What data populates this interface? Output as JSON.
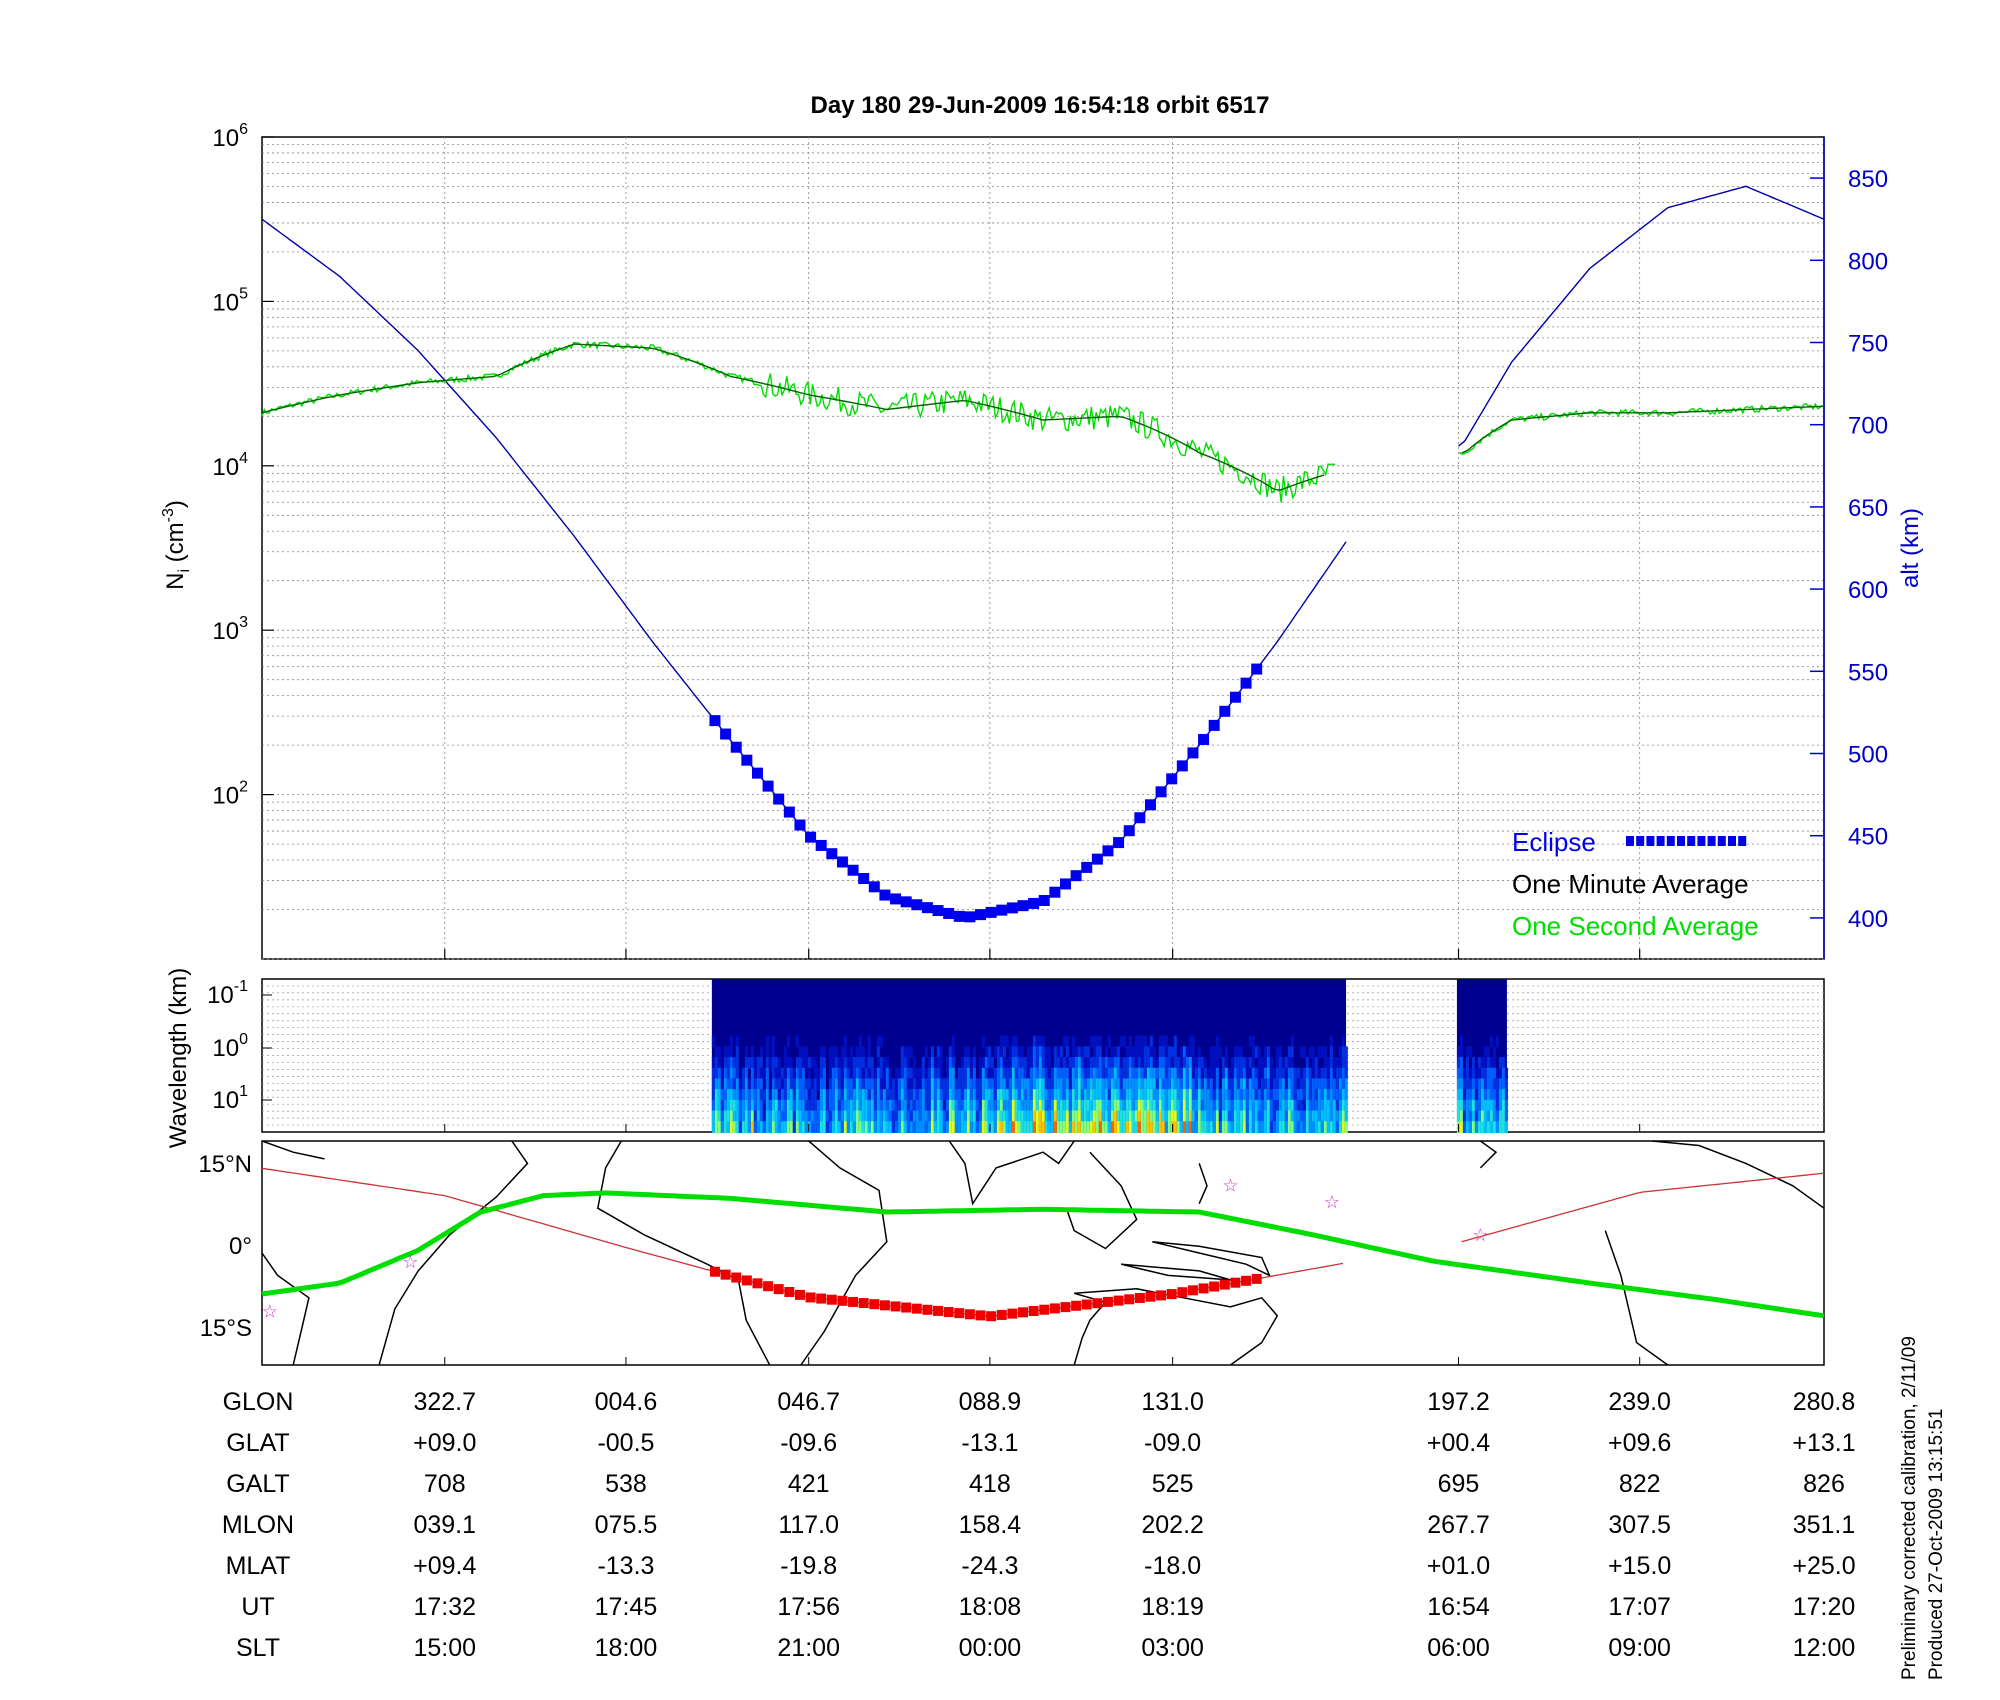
{
  "title": "Day 180  29-Jun-2009 16:54:18   orbit 6517",
  "footer": {
    "line1": "Preliminary corrected calibration, 2/11/09",
    "line2": "Produced 27-Oct-2009 13:15:51"
  },
  "chart_data": [
    {
      "type": "line",
      "panel": "density",
      "ylabel": "Ni (cm-3)",
      "y2label": "alt (km)",
      "yscale": "log",
      "ylim": [
        10,
        1000000
      ],
      "y_ticks": [
        "10^2",
        "10^3",
        "10^4",
        "10^5",
        "10^6"
      ],
      "y2lim": [
        375,
        875
      ],
      "y2_ticks": [
        400,
        450,
        500,
        550,
        600,
        650,
        700,
        750,
        800,
        850
      ],
      "x_range_fraction": [
        0,
        1
      ],
      "grid": true,
      "legend": {
        "position": "bottom-right",
        "entries": [
          "Eclipse",
          "One Minute Average",
          "One Second Average"
        ]
      },
      "series": [
        {
          "name": "Eclipse",
          "color": "#0000ff",
          "note": "altitude where satellite in eclipse",
          "x_frac": [
            0.29,
            0.64
          ]
        },
        {
          "name": "One Minute Average",
          "color": "#000000"
        },
        {
          "name": "One Second Average",
          "color": "#00dd00"
        },
        {
          "color": "#0000aa",
          "x_frac": [
            0.0,
            0.05,
            0.1,
            0.15,
            0.2,
            0.25,
            0.3,
            0.35,
            0.4,
            0.45,
            0.5,
            0.55,
            0.6,
            0.65,
            0.7,
            0.77,
            0.8,
            0.85,
            0.9,
            0.95,
            1.0
          ],
          "alt_km": [
            825,
            790,
            745,
            692,
            632,
            568,
            508,
            450,
            413,
            400,
            410,
            447,
            505,
            568,
            637,
            690,
            738,
            795,
            832,
            845,
            825
          ]
        },
        {
          "color": "#006400",
          "x_frac": [
            0.0,
            0.05,
            0.1,
            0.15,
            0.2,
            0.25,
            0.3,
            0.35,
            0.4,
            0.45,
            0.5,
            0.55,
            0.6,
            0.65,
            0.7,
            0.77,
            0.8,
            0.85,
            0.9,
            0.95,
            1.0
          ],
          "ni": [
            21000,
            27000,
            32000,
            35000,
            55000,
            52000,
            35000,
            27000,
            22000,
            25000,
            19000,
            20000,
            12000,
            7000,
            10000,
            12000,
            19000,
            21000,
            21000,
            22000,
            23000
          ]
        }
      ]
    },
    {
      "type": "heatmap",
      "panel": "spectrogram",
      "ylabel": "Wavelength (km)",
      "y_ticks": [
        "10^-1",
        "10^0",
        "10^1"
      ],
      "data_blocks_x_frac": [
        [
          0.288,
          0.694
        ],
        [
          0.765,
          0.797
        ]
      ]
    },
    {
      "type": "line",
      "panel": "map",
      "y_ticks": [
        "15°N",
        "0°",
        "15°S"
      ],
      "ylim": [
        -22,
        19
      ],
      "series": [
        {
          "name": "magnetic equator",
          "color": "#00dd00",
          "x_frac": [
            0.0,
            0.05,
            0.1,
            0.14,
            0.18,
            0.22,
            0.3,
            0.4,
            0.5,
            0.6,
            0.67,
            0.75,
            0.85,
            0.93,
            1.0
          ],
          "lat": [
            -9,
            -7,
            -1,
            6,
            9,
            9.5,
            8.5,
            6,
            6.5,
            6,
            2,
            -3,
            -7,
            -10,
            -13
          ]
        },
        {
          "name": "orbit ground track",
          "color": "#cc3333",
          "lat_from_glat": true
        },
        {
          "name": "eclipse track",
          "color": "#ee0000",
          "x_frac": [
            0.29,
            0.64
          ]
        }
      ],
      "stars_x_frac_lat": [
        [
          0.005,
          -12
        ],
        [
          0.095,
          -3
        ],
        [
          0.62,
          11
        ],
        [
          0.685,
          8
        ],
        [
          0.78,
          2
        ]
      ]
    }
  ],
  "table": {
    "rows": [
      {
        "label": "GLON",
        "values": [
          "322.7",
          "004.6",
          "046.7",
          "088.9",
          "131.0",
          "197.2",
          "239.0",
          "280.8"
        ]
      },
      {
        "label": "GLAT",
        "values": [
          "+09.0",
          "-00.5",
          "-09.6",
          "-13.1",
          "-09.0",
          "+00.4",
          "+09.6",
          "+13.1"
        ]
      },
      {
        "label": "GALT",
        "values": [
          "708",
          "538",
          "421",
          "418",
          "525",
          "695",
          "822",
          "826"
        ]
      },
      {
        "label": "MLON",
        "values": [
          "039.1",
          "075.5",
          "117.0",
          "158.4",
          "202.2",
          "267.7",
          "307.5",
          "351.1"
        ]
      },
      {
        "label": "MLAT",
        "values": [
          "+09.4",
          "-13.3",
          "-19.8",
          "-24.3",
          "-18.0",
          "+01.0",
          "+15.0",
          "+25.0"
        ]
      },
      {
        "label": "UT",
        "values": [
          "17:32",
          "17:45",
          "17:56",
          "18:08",
          "18:19",
          "16:54",
          "17:07",
          "17:20"
        ]
      },
      {
        "label": "SLT",
        "values": [
          "15:00",
          "18:00",
          "21:00",
          "00:00",
          "03:00",
          "06:00",
          "09:00",
          "12:00"
        ]
      }
    ],
    "column_x_frac": [
      0.117,
      0.233,
      0.35,
      0.466,
      0.583,
      0.766,
      0.882,
      1.0
    ]
  }
}
